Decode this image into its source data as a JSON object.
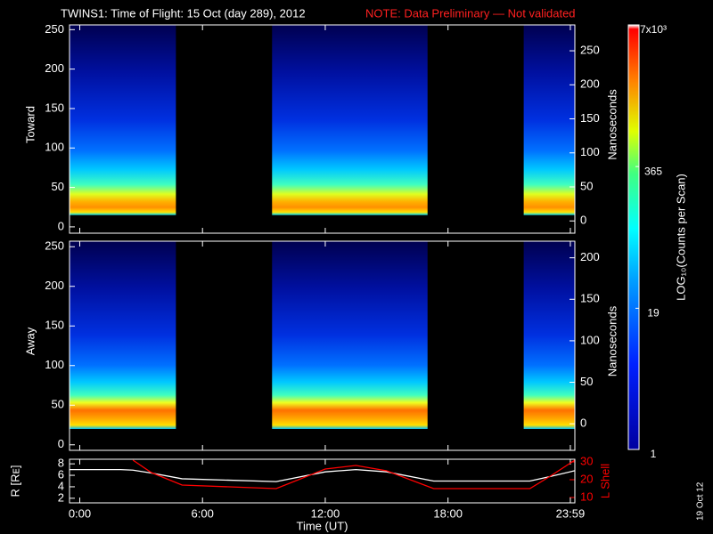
{
  "title": "TWINS1: Time of Flight: 15 Oct (day 289), 2012",
  "note": "NOTE: Data Preliminary — Not validated",
  "date_stamp": "19 Oct 12",
  "chart_data": [
    {
      "type": "spectrogram",
      "ylabel": "Toward",
      "y2label": "Nanoseconds",
      "xlim": [
        -0.5,
        24.2
      ],
      "ylim": [
        -8,
        256
      ],
      "yticks": [
        0,
        50,
        100,
        150,
        200,
        250
      ],
      "y2lim": [
        -18,
        288
      ],
      "y2ticks": [
        0,
        50,
        100,
        150,
        200,
        250
      ],
      "channel_range": [
        15,
        256
      ],
      "intervals": [
        [
          -0.5,
          4.7
        ],
        [
          9.4,
          17.0
        ],
        [
          21.7,
          24.2
        ]
      ]
    },
    {
      "type": "spectrogram",
      "ylabel": "Away",
      "y2label": "Nanoseconds",
      "xlim": [
        -0.5,
        24.2
      ],
      "ylim": [
        -7,
        257
      ],
      "yticks": [
        0,
        50,
        100,
        150,
        200,
        250
      ],
      "y2lim": [
        -32,
        220
      ],
      "y2ticks": [
        0,
        50,
        100,
        150,
        200
      ],
      "channel_range": [
        20,
        257
      ],
      "intervals": [
        [
          -0.5,
          4.7
        ],
        [
          9.4,
          17.0
        ],
        [
          21.7,
          24.2
        ]
      ]
    },
    {
      "type": "colorbar",
      "label": "LOG₁₀(Counts per Scan)",
      "log_scale": true,
      "clim": [
        1,
        7000
      ],
      "ticks": [
        1,
        19,
        365,
        {
          "value": 7000,
          "label": "7x10³"
        }
      ]
    },
    {
      "type": "line",
      "ylabel": "R [Rᴇ]",
      "y2label": "L Shell",
      "xlabel": "Time (UT)",
      "xlim": [
        -0.5,
        24.2
      ],
      "xticks": [
        {
          "value": 0,
          "label": "0:00"
        },
        {
          "value": 6,
          "label": "6:00"
        },
        {
          "value": 12,
          "label": "12:00"
        },
        {
          "value": 18,
          "label": "18:00"
        },
        {
          "value": 23.98,
          "label": "23:59"
        }
      ],
      "ylim": [
        1.2,
        8.8
      ],
      "yticks": [
        2,
        4,
        6,
        8
      ],
      "y2lim": [
        7,
        31.5
      ],
      "y2ticks": [
        10,
        20,
        30
      ],
      "x": [
        -0.5,
        2,
        2.6,
        3.5,
        5,
        9.6,
        12,
        13.5,
        15,
        17.3,
        22,
        23,
        24.2
      ],
      "series": [
        {
          "color": "#ffffff",
          "values": [
            7.0,
            7.0,
            6.9,
            6.4,
            5.4,
            4.9,
            6.6,
            7.0,
            6.6,
            5.0,
            5.0,
            5.8,
            6.8
          ]
        },
        {
          "color": "#ff0000",
          "axis": "y2",
          "values": [
            null,
            null,
            31,
            24,
            17,
            15,
            26,
            28,
            25,
            15,
            15,
            22,
            31
          ]
        }
      ]
    }
  ]
}
